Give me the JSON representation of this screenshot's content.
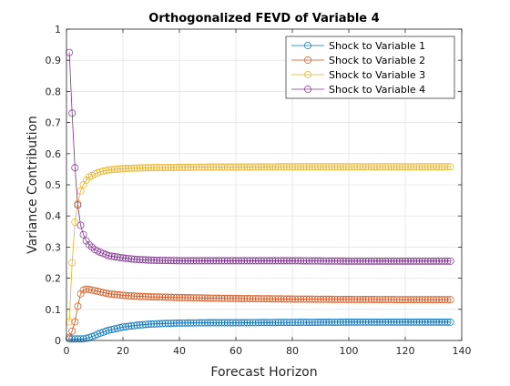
{
  "chart_data": {
    "type": "line",
    "title": "Orthogonalized FEVD of Variable 4",
    "xlabel": "Forecast Horizon",
    "ylabel": "Variance Contribution",
    "xlim": [
      0,
      140
    ],
    "ylim": [
      0,
      1
    ],
    "xticks": [
      "0",
      "20",
      "40",
      "60",
      "80",
      "100",
      "120",
      "140"
    ],
    "yticks": [
      "0",
      "0.1",
      "0.2",
      "0.3",
      "0.4",
      "0.5",
      "0.6",
      "0.7",
      "0.8",
      "0.9",
      "1"
    ],
    "grid": true,
    "legend_position": "top-right",
    "marker": "circle",
    "x": [
      1,
      2,
      3,
      4,
      5,
      6,
      7,
      8,
      9,
      10,
      11,
      12,
      13,
      14,
      15,
      16,
      17,
      18,
      19,
      20,
      21,
      22,
      23,
      24,
      25,
      26,
      27,
      28,
      29,
      30,
      31,
      32,
      33,
      34,
      35,
      36,
      37,
      38,
      39,
      40,
      41,
      42,
      43,
      44,
      45,
      46,
      47,
      48,
      49,
      50,
      51,
      52,
      53,
      54,
      55,
      56,
      57,
      58,
      59,
      60,
      61,
      62,
      63,
      64,
      65,
      66,
      67,
      68,
      69,
      70,
      71,
      72,
      73,
      74,
      75,
      76,
      77,
      78,
      79,
      80,
      81,
      82,
      83,
      84,
      85,
      86,
      87,
      88,
      89,
      90,
      91,
      92,
      93,
      94,
      95,
      96,
      97,
      98,
      99,
      100,
      101,
      102,
      103,
      104,
      105,
      106,
      107,
      108,
      109,
      110,
      111,
      112,
      113,
      114,
      115,
      116,
      117,
      118,
      119,
      120,
      121,
      122,
      123,
      124,
      125,
      126,
      127,
      128,
      129,
      130,
      131,
      132,
      133,
      134,
      135,
      136
    ],
    "series": [
      {
        "name": "Shock to Variable 1",
        "color": "#0072BD",
        "anchors": [
          [
            1,
            0.005
          ],
          [
            2,
            0.005
          ],
          [
            3,
            0.005
          ],
          [
            4,
            0.005
          ],
          [
            5,
            0.005
          ],
          [
            6,
            0.005
          ],
          [
            7,
            0.007
          ],
          [
            8,
            0.009
          ],
          [
            10,
            0.016
          ],
          [
            12,
            0.024
          ],
          [
            15,
            0.033
          ],
          [
            20,
            0.043
          ],
          [
            25,
            0.049
          ],
          [
            30,
            0.053
          ],
          [
            40,
            0.056
          ],
          [
            50,
            0.057
          ],
          [
            60,
            0.057
          ],
          [
            80,
            0.058
          ],
          [
            100,
            0.059
          ],
          [
            120,
            0.059
          ],
          [
            136,
            0.059
          ]
        ]
      },
      {
        "name": "Shock to Variable 2",
        "color": "#D95319",
        "anchors": [
          [
            1,
            0.01
          ],
          [
            2,
            0.03
          ],
          [
            3,
            0.06
          ],
          [
            4,
            0.11
          ],
          [
            5,
            0.15
          ],
          [
            6,
            0.162
          ],
          [
            7,
            0.165
          ],
          [
            8,
            0.164
          ],
          [
            10,
            0.16
          ],
          [
            12,
            0.156
          ],
          [
            15,
            0.15
          ],
          [
            20,
            0.145
          ],
          [
            25,
            0.142
          ],
          [
            30,
            0.14
          ],
          [
            40,
            0.138
          ],
          [
            50,
            0.136
          ],
          [
            60,
            0.135
          ],
          [
            80,
            0.133
          ],
          [
            100,
            0.132
          ],
          [
            120,
            0.131
          ],
          [
            136,
            0.131
          ]
        ]
      },
      {
        "name": "Shock to Variable 3",
        "color": "#EDB120",
        "anchors": [
          [
            1,
            0.06
          ],
          [
            2,
            0.25
          ],
          [
            3,
            0.38
          ],
          [
            4,
            0.44
          ],
          [
            5,
            0.48
          ],
          [
            6,
            0.5
          ],
          [
            7,
            0.515
          ],
          [
            8,
            0.525
          ],
          [
            10,
            0.535
          ],
          [
            12,
            0.542
          ],
          [
            15,
            0.548
          ],
          [
            20,
            0.552
          ],
          [
            25,
            0.554
          ],
          [
            30,
            0.555
          ],
          [
            40,
            0.556
          ],
          [
            50,
            0.557
          ],
          [
            60,
            0.557
          ],
          [
            80,
            0.558
          ],
          [
            100,
            0.558
          ],
          [
            120,
            0.558
          ],
          [
            136,
            0.558
          ]
        ]
      },
      {
        "name": "Shock to Variable 4",
        "color": "#7E2F8E",
        "anchors": [
          [
            1,
            0.925
          ],
          [
            2,
            0.73
          ],
          [
            3,
            0.555
          ],
          [
            4,
            0.435
          ],
          [
            5,
            0.37
          ],
          [
            6,
            0.34
          ],
          [
            7,
            0.32
          ],
          [
            8,
            0.308
          ],
          [
            10,
            0.292
          ],
          [
            12,
            0.283
          ],
          [
            15,
            0.272
          ],
          [
            20,
            0.265
          ],
          [
            25,
            0.26
          ],
          [
            30,
            0.258
          ],
          [
            40,
            0.256
          ],
          [
            50,
            0.256
          ],
          [
            60,
            0.256
          ],
          [
            80,
            0.256
          ],
          [
            100,
            0.255
          ],
          [
            120,
            0.255
          ],
          [
            136,
            0.255
          ]
        ]
      }
    ]
  }
}
